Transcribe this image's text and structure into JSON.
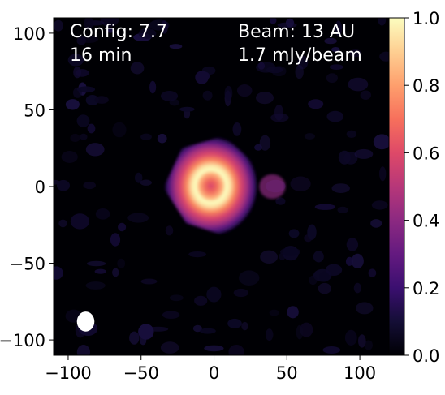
{
  "chart_data": {
    "type": "heatmap",
    "title": "",
    "xlabel": "",
    "ylabel": "",
    "xlim": [
      -110,
      120
    ],
    "ylim": [
      -110,
      110
    ],
    "xticks": [
      -100,
      -50,
      0,
      50,
      100
    ],
    "yticks": [
      100,
      50,
      0,
      -50,
      -100
    ],
    "xtick_labels": [
      "−100",
      "−50",
      "0",
      "50",
      "100"
    ],
    "ytick_labels": [
      "100",
      "50",
      "0",
      "−50",
      "−100"
    ],
    "colormap": "magma",
    "colorbar": {
      "range": [
        0.0,
        1.0
      ],
      "ticks": [
        0.0,
        0.2,
        0.4,
        0.6,
        0.8,
        1.0
      ],
      "tick_labels": [
        "0.0",
        "0.2",
        "0.4",
        "0.6",
        "0.8",
        "1.0"
      ]
    },
    "features": {
      "ring": {
        "center": [
          0,
          0
        ],
        "peak_radius": 11,
        "peak_value": 1.0,
        "outer_radius": 35
      },
      "beam_ellipse": {
        "center": [
          -88,
          -88
        ],
        "major": 13,
        "minor": 12,
        "color": "#ffffff"
      }
    },
    "annotations": {
      "config_line1": "Config: 7.7",
      "config_line2": "16 min",
      "beam_line1": "Beam: 13 AU",
      "beam_line2": "1.7 mJy/beam"
    },
    "grid": false
  },
  "colors": {
    "background": "#000004",
    "annotation_text": "#ffffff",
    "axis": "#000000"
  }
}
